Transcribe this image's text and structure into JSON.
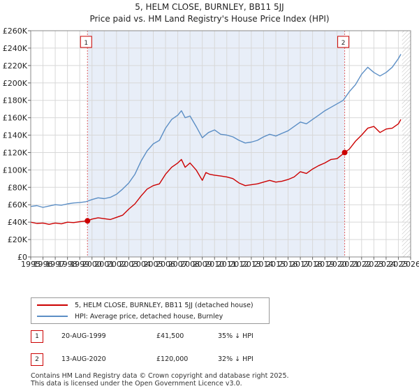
{
  "chart_data": {
    "type": "line",
    "title": "5, HELM CLOSE, BURNLEY, BB11 5JJ",
    "subtitle": "Price paid vs. HM Land Registry's House Price Index (HPI)",
    "xlim": [
      1995,
      2026
    ],
    "ylim": [
      0,
      260000
    ],
    "x_ticks": [
      "1995",
      "1996",
      "1997",
      "1998",
      "1999",
      "2000",
      "2001",
      "2002",
      "2003",
      "2004",
      "2005",
      "2006",
      "2007",
      "2008",
      "2009",
      "2010",
      "2011",
      "2012",
      "2013",
      "2014",
      "2015",
      "2016",
      "2017",
      "2018",
      "2019",
      "2020",
      "2021",
      "2022",
      "2023",
      "2024",
      "2025",
      "2026"
    ],
    "y_ticks": [
      0,
      20000,
      40000,
      60000,
      80000,
      100000,
      120000,
      140000,
      160000,
      180000,
      200000,
      220000,
      240000,
      260000
    ],
    "y_tick_labels": [
      "£0",
      "£20K",
      "£40K",
      "£60K",
      "£80K",
      "£100K",
      "£120K",
      "£140K",
      "£160K",
      "£180K",
      "£200K",
      "£220K",
      "£240K",
      "£260K"
    ],
    "grid": true,
    "shaded_range": [
      1999.63,
      2020.62
    ],
    "hatched_from": 2025.3,
    "series": [
      {
        "name": "5, HELM CLOSE, BURNLEY, BB11 5JJ (detached house)",
        "color": "#cc0000",
        "x": [
          1995,
          1995.5,
          1996,
          1996.5,
          1997,
          1997.5,
          1998,
          1998.5,
          1999,
          1999.63,
          2000,
          2000.5,
          2001,
          2001.5,
          2002,
          2002.5,
          2003,
          2003.5,
          2004,
          2004.5,
          2005,
          2005.5,
          2006,
          2006.5,
          2007,
          2007.3,
          2007.6,
          2008,
          2008.5,
          2009,
          2009.3,
          2009.6,
          2010,
          2010.5,
          2011,
          2011.5,
          2012,
          2012.5,
          2013,
          2013.5,
          2014,
          2014.5,
          2015,
          2015.5,
          2016,
          2016.5,
          2017,
          2017.5,
          2018,
          2018.5,
          2019,
          2019.5,
          2020,
          2020.62,
          2021,
          2021.5,
          2022,
          2022.5,
          2023,
          2023.5,
          2024,
          2024.5,
          2025,
          2025.2
        ],
        "values": [
          40000,
          38500,
          39000,
          37500,
          39000,
          38000,
          40000,
          39500,
          40500,
          41500,
          43500,
          45000,
          44000,
          43000,
          45500,
          48000,
          55000,
          61000,
          70000,
          78000,
          82000,
          84000,
          95000,
          103000,
          108000,
          112000,
          103000,
          108000,
          100000,
          88000,
          97000,
          95000,
          94000,
          93000,
          92000,
          90000,
          85000,
          82000,
          83000,
          84000,
          86000,
          88000,
          86000,
          87000,
          89000,
          92000,
          98000,
          96000,
          101000,
          105000,
          108000,
          112000,
          113000,
          120000,
          124000,
          133000,
          140000,
          148000,
          150000,
          143000,
          147000,
          148000,
          153000,
          158000
        ]
      },
      {
        "name": "HPI: Average price, detached house, Burnley",
        "color": "#5b8ec5",
        "x": [
          1995,
          1995.5,
          1996,
          1996.5,
          1997,
          1997.5,
          1998,
          1998.5,
          1999,
          1999.5,
          2000,
          2000.5,
          2001,
          2001.5,
          2002,
          2002.5,
          2003,
          2003.5,
          2004,
          2004.5,
          2005,
          2005.5,
          2006,
          2006.5,
          2007,
          2007.3,
          2007.6,
          2008,
          2008.5,
          2009,
          2009.5,
          2010,
          2010.5,
          2011,
          2011.5,
          2012,
          2012.5,
          2013,
          2013.5,
          2014,
          2014.5,
          2015,
          2015.5,
          2016,
          2016.5,
          2017,
          2017.5,
          2018,
          2018.5,
          2019,
          2019.5,
          2020,
          2020.5,
          2021,
          2021.5,
          2022,
          2022.5,
          2023,
          2023.5,
          2024,
          2024.5,
          2025,
          2025.2
        ],
        "values": [
          58000,
          59000,
          57000,
          58500,
          60000,
          59500,
          61000,
          62000,
          62500,
          63500,
          66000,
          68000,
          67000,
          68500,
          72000,
          78000,
          85000,
          95000,
          110000,
          122000,
          130000,
          134000,
          148000,
          158000,
          163000,
          168000,
          160000,
          162000,
          150000,
          137000,
          143000,
          146000,
          141000,
          140000,
          138000,
          134000,
          131000,
          132000,
          134000,
          138000,
          141000,
          139000,
          142000,
          145000,
          150000,
          155000,
          153000,
          158000,
          163000,
          168000,
          172000,
          176000,
          180000,
          190000,
          198000,
          210000,
          218000,
          212000,
          208000,
          212000,
          218000,
          228000,
          233000
        ]
      }
    ],
    "sale_points": [
      {
        "label": "1",
        "x": 1999.63,
        "y": 41500
      },
      {
        "label": "2",
        "x": 2020.62,
        "y": 120000
      }
    ]
  },
  "legend": {
    "property_label": "5, HELM CLOSE, BURNLEY, BB11 5JJ (detached house)",
    "hpi_label": "HPI: Average price, detached house, Burnley"
  },
  "sales": [
    {
      "num": "1",
      "date": "20-AUG-1999",
      "price": "£41,500",
      "diff": "35% ↓ HPI"
    },
    {
      "num": "2",
      "date": "13-AUG-2020",
      "price": "£120,000",
      "diff": "32% ↓ HPI"
    }
  ],
  "footer": {
    "line1": "Contains HM Land Registry data © Crown copyright and database right 2025.",
    "line2": "This data is licensed under the Open Government Licence v3.0."
  },
  "colors": {
    "price": "#cc0000",
    "hpi": "#5b8ec5",
    "shade": "#e8eef8",
    "grid": "#d8d8d8"
  }
}
